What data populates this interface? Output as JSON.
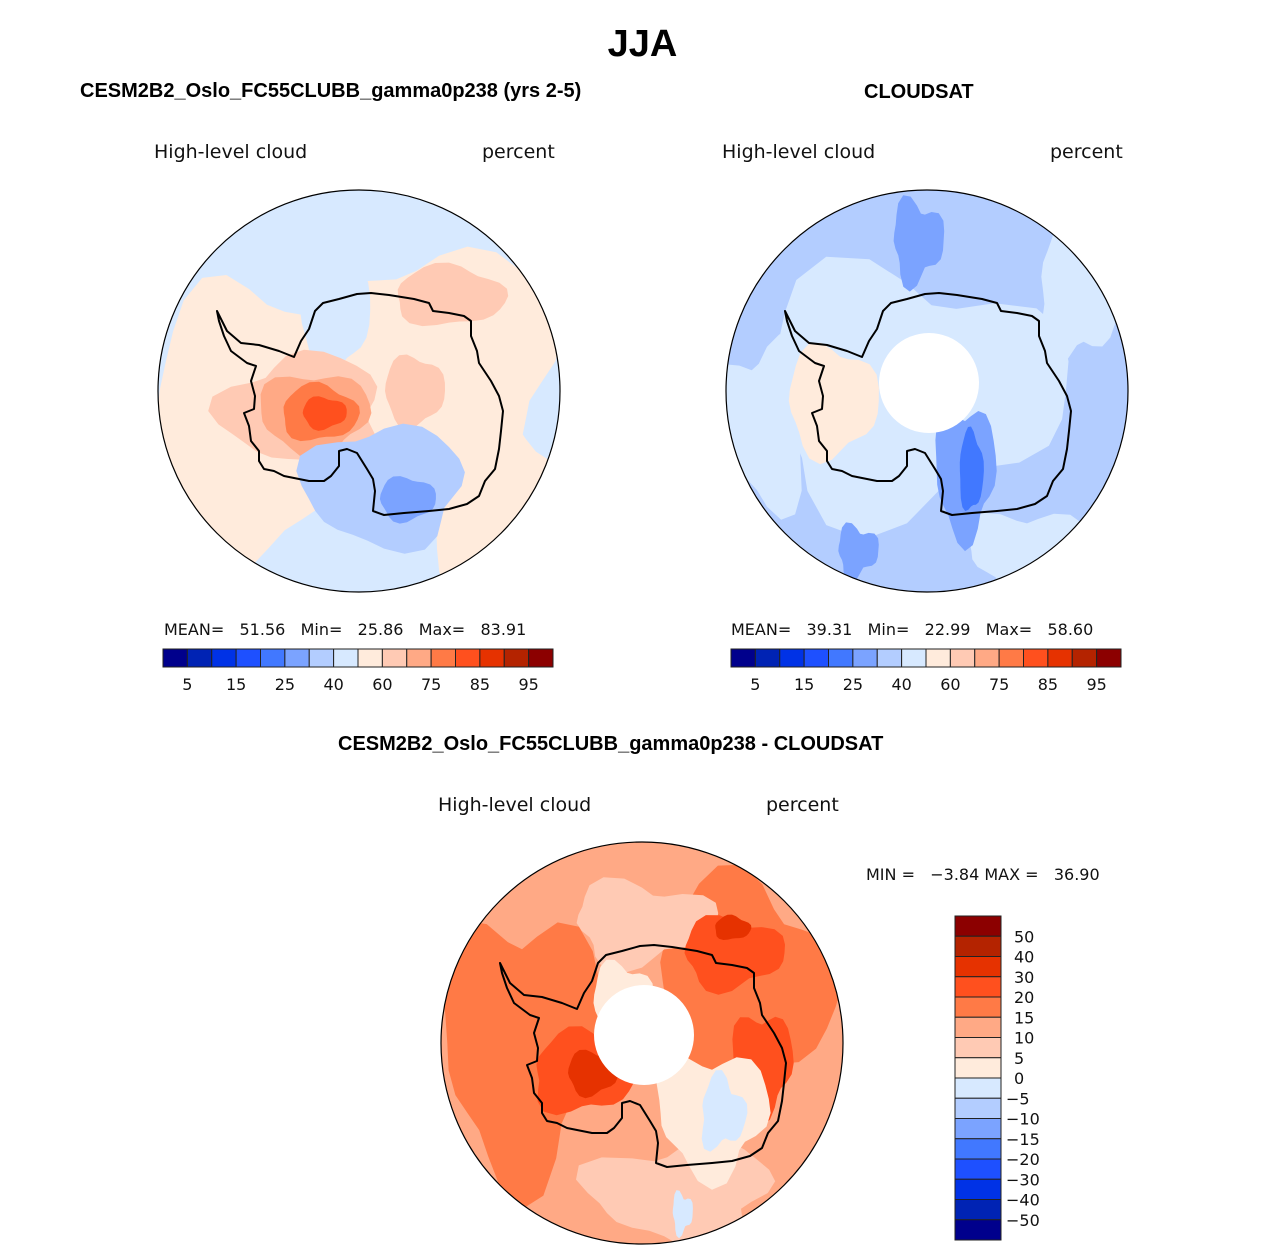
{
  "chart_data": {
    "type": "heatmap",
    "projection": "south-polar-stereographic",
    "title": "JJA",
    "variable": "High-level cloud",
    "units": "percent",
    "panels": [
      {
        "id": "model",
        "title": "CESM2B2_Oslo_FC55CLUBB_gamma0p238 (yrs 2-5)",
        "left_label": "High-level cloud",
        "right_label": "percent",
        "stats": {
          "mean_label": "MEAN=",
          "mean": "51.56",
          "min_label": "Min=",
          "min": "25.86",
          "max_label": "Max=",
          "max": "83.91"
        },
        "polar_gap": false,
        "colorbar": {
          "orientation": "horizontal",
          "levels": [
            5,
            10,
            15,
            20,
            25,
            30,
            40,
            50,
            60,
            70,
            75,
            80,
            85,
            90,
            95
          ],
          "tick_labels": [
            "5",
            "15",
            "25",
            "40",
            "60",
            "75",
            "85",
            "95"
          ],
          "colors": [
            "#00008c",
            "#0023b4",
            "#0032e6",
            "#1e50ff",
            "#4178ff",
            "#7ba3ff",
            "#b3cdff",
            "#d7e9ff",
            "#ffebdc",
            "#ffcab4",
            "#ffa985",
            "#ff7a46",
            "#ff501e",
            "#e63200",
            "#b42300",
            "#8c0000"
          ]
        },
        "features": [
          {
            "name": "background-ocean",
            "level_index": 7
          },
          {
            "name": "east-antarctic-highs",
            "level_index": 8
          },
          {
            "name": "west-lobe-highs",
            "level_index": 8
          },
          {
            "name": "ross-sea-maximum",
            "level_index": 12
          },
          {
            "name": "weddell-sea-minimum",
            "level_index": 5
          }
        ]
      },
      {
        "id": "obs",
        "title": "CLOUDSAT",
        "left_label": "High-level cloud",
        "right_label": "percent",
        "stats": {
          "mean_label": "MEAN=",
          "mean": "39.31",
          "min_label": "Min=",
          "min": "22.99",
          "max_label": "Max=",
          "max": "58.60"
        },
        "polar_gap": true,
        "colorbar": {
          "orientation": "horizontal",
          "levels": [
            5,
            10,
            15,
            20,
            25,
            30,
            40,
            50,
            60,
            70,
            75,
            80,
            85,
            90,
            95
          ],
          "tick_labels": [
            "5",
            "15",
            "25",
            "40",
            "60",
            "75",
            "85",
            "95"
          ],
          "colors": [
            "#00008c",
            "#0023b4",
            "#0032e6",
            "#1e50ff",
            "#4178ff",
            "#7ba3ff",
            "#b3cdff",
            "#d7e9ff",
            "#ffebdc",
            "#ffcab4",
            "#ffa985",
            "#ff7a46",
            "#ff501e",
            "#e63200",
            "#b42300",
            "#8c0000"
          ]
        },
        "features": [
          {
            "name": "background-ocean",
            "level_index": 6
          },
          {
            "name": "interior-plateau",
            "level_index": 7
          },
          {
            "name": "ross-ice-shelf-highs",
            "level_index": 8
          },
          {
            "name": "weddell-minimum",
            "level_index": 4
          }
        ]
      },
      {
        "id": "diff",
        "title": "CESM2B2_Oslo_FC55CLUBB_gamma0p238 - CLOUDSAT",
        "left_label": "High-level cloud",
        "right_label": "percent",
        "stats": {
          "min_label": "MIN =",
          "min": "−3.84",
          "max_label": "MAX =",
          "max": "36.90"
        },
        "polar_gap": true,
        "colorbar": {
          "orientation": "vertical",
          "levels": [
            -50,
            -40,
            -30,
            -20,
            -15,
            -10,
            -5,
            0,
            5,
            10,
            15,
            20,
            30,
            40,
            50
          ],
          "tick_labels_top_to_bottom": [
            "50",
            "40",
            "30",
            "20",
            "15",
            "10",
            "5",
            "0",
            "−5",
            "−10",
            "−15",
            "−20",
            "−30",
            "−40",
            "−50"
          ],
          "colors_bottom_to_top": [
            "#00008c",
            "#0023b4",
            "#0032e6",
            "#1e50ff",
            "#4178ff",
            "#7ba3ff",
            "#b3cdff",
            "#d7e9ff",
            "#ffebdc",
            "#ffcab4",
            "#ffa985",
            "#ff7a46",
            "#ff501e",
            "#e63200",
            "#b42300",
            "#8c0000"
          ]
        },
        "features": [
          {
            "name": "background-ocean",
            "level_index": 10
          },
          {
            "name": "circumpolar-band",
            "level_index": 11
          },
          {
            "name": "east-antarctic-maximum",
            "level_index": 12
          },
          {
            "name": "ross-sea-maximum",
            "level_index": 13
          },
          {
            "name": "weddell-minimum",
            "level_index": 7
          }
        ]
      }
    ]
  }
}
